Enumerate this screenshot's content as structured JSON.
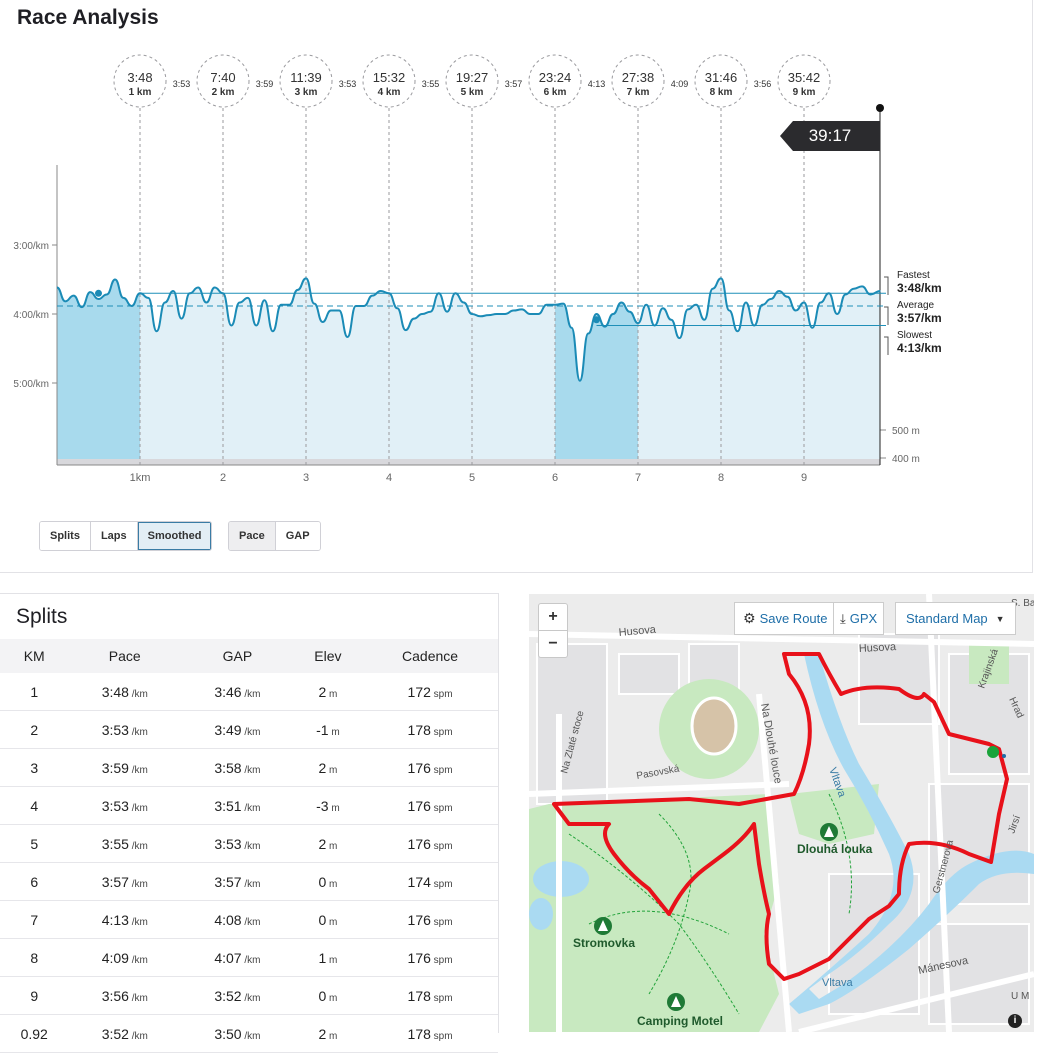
{
  "page_title": "Race Analysis",
  "chart_data": {
    "type": "line",
    "title": "Race Analysis",
    "finish_time": "39:17",
    "km_markers": [
      {
        "time": "3:48",
        "km": "1 km"
      },
      {
        "time": "7:40",
        "km": "2 km"
      },
      {
        "time": "11:39",
        "km": "3 km"
      },
      {
        "time": "15:32",
        "km": "4 km"
      },
      {
        "time": "19:27",
        "km": "5 km"
      },
      {
        "time": "23:24",
        "km": "6 km"
      },
      {
        "time": "27:38",
        "km": "7 km"
      },
      {
        "time": "31:46",
        "km": "8 km"
      },
      {
        "time": "35:42",
        "km": "9 km"
      }
    ],
    "split_paces": [
      "3:53",
      "3:59",
      "3:53",
      "3:55",
      "3:57",
      "4:13",
      "4:09",
      "3:56"
    ],
    "x_ticks": [
      "1km",
      "2",
      "3",
      "4",
      "5",
      "6",
      "7",
      "8",
      "9"
    ],
    "y_ticks": [
      "3:00/km",
      "4:00/km",
      "5:00/km"
    ],
    "elev_ticks": [
      "500 m",
      "400 m"
    ],
    "fastest": {
      "label": "Fastest",
      "value": "3:48/km"
    },
    "average": {
      "label": "Average",
      "value": "3:57/km"
    },
    "slowest": {
      "label": "Slowest",
      "value": "4:13/km"
    },
    "highlighted_km": [
      1,
      7
    ],
    "pace_series_sec_per_km": [
      [
        0,
        217
      ],
      [
        0.1,
        229
      ],
      [
        0.2,
        224
      ],
      [
        0.3,
        234
      ],
      [
        0.4,
        221
      ],
      [
        0.5,
        227
      ],
      [
        0.6,
        223
      ],
      [
        0.7,
        210
      ],
      [
        0.8,
        226
      ],
      [
        0.9,
        233
      ],
      [
        1.0,
        222
      ],
      [
        1.1,
        226
      ],
      [
        1.2,
        255
      ],
      [
        1.3,
        230
      ],
      [
        1.4,
        220
      ],
      [
        1.5,
        244
      ],
      [
        1.6,
        222
      ],
      [
        1.7,
        217
      ],
      [
        1.8,
        230
      ],
      [
        1.9,
        217
      ],
      [
        2.0,
        222
      ],
      [
        2.1,
        250
      ],
      [
        2.2,
        230
      ],
      [
        2.3,
        226
      ],
      [
        2.4,
        250
      ],
      [
        2.5,
        228
      ],
      [
        2.6,
        255
      ],
      [
        2.7,
        232
      ],
      [
        2.8,
        232
      ],
      [
        2.9,
        219
      ],
      [
        3.0,
        209
      ],
      [
        3.1,
        231
      ],
      [
        3.2,
        247
      ],
      [
        3.3,
        237
      ],
      [
        3.4,
        237
      ],
      [
        3.5,
        260
      ],
      [
        3.6,
        233
      ],
      [
        3.7,
        233
      ],
      [
        3.8,
        224
      ],
      [
        3.9,
        220
      ],
      [
        4.0,
        222
      ],
      [
        4.1,
        235
      ],
      [
        4.2,
        254
      ],
      [
        4.3,
        244
      ],
      [
        4.4,
        240
      ],
      [
        4.5,
        238
      ],
      [
        4.6,
        222
      ],
      [
        4.7,
        238
      ],
      [
        4.8,
        222
      ],
      [
        4.9,
        230
      ],
      [
        5.0,
        240
      ],
      [
        5.1,
        242
      ],
      [
        5.2,
        241
      ],
      [
        5.3,
        240
      ],
      [
        5.4,
        240
      ],
      [
        5.5,
        237
      ],
      [
        5.6,
        236
      ],
      [
        5.7,
        240
      ],
      [
        5.8,
        240
      ],
      [
        5.9,
        232
      ],
      [
        6.0,
        232
      ],
      [
        6.1,
        231
      ],
      [
        6.2,
        252
      ],
      [
        6.3,
        298
      ],
      [
        6.4,
        257
      ],
      [
        6.5,
        240
      ],
      [
        6.6,
        251
      ],
      [
        6.7,
        240
      ],
      [
        6.8,
        230
      ],
      [
        6.9,
        238
      ],
      [
        7.0,
        248
      ],
      [
        7.1,
        232
      ],
      [
        7.2,
        250
      ],
      [
        7.3,
        235
      ],
      [
        7.4,
        245
      ],
      [
        7.5,
        261
      ],
      [
        7.6,
        236
      ],
      [
        7.7,
        232
      ],
      [
        7.8,
        245
      ],
      [
        7.9,
        218
      ],
      [
        8.0,
        209
      ],
      [
        8.1,
        237
      ],
      [
        8.2,
        255
      ],
      [
        8.3,
        230
      ],
      [
        8.4,
        250
      ],
      [
        8.5,
        232
      ],
      [
        8.6,
        227
      ],
      [
        8.7,
        220
      ],
      [
        8.8,
        225
      ],
      [
        8.9,
        237
      ],
      [
        9.0,
        230
      ],
      [
        9.1,
        252
      ],
      [
        9.2,
        230
      ],
      [
        9.3,
        222
      ],
      [
        9.4,
        240
      ],
      [
        9.5,
        223
      ],
      [
        9.6,
        218
      ],
      [
        9.7,
        216
      ],
      [
        9.8,
        223
      ],
      [
        9.92,
        220
      ]
    ]
  },
  "chart_buttons": {
    "splits": "Splits",
    "laps": "Laps",
    "smoothed": "Smoothed",
    "pace": "Pace",
    "gap": "GAP"
  },
  "splits": {
    "title": "Splits",
    "headers": [
      "KM",
      "Pace",
      "GAP",
      "Elev",
      "Cadence"
    ],
    "pace_unit": "/km",
    "elev_unit": "m",
    "cadence_unit": "spm",
    "rows": [
      [
        "1",
        "3:48",
        "3:46",
        "2",
        "172"
      ],
      [
        "2",
        "3:53",
        "3:49",
        "-1",
        "178"
      ],
      [
        "3",
        "3:59",
        "3:58",
        "2",
        "176"
      ],
      [
        "4",
        "3:53",
        "3:51",
        "-3",
        "176"
      ],
      [
        "5",
        "3:55",
        "3:53",
        "2",
        "176"
      ],
      [
        "6",
        "3:57",
        "3:57",
        "0",
        "174"
      ],
      [
        "7",
        "4:13",
        "4:08",
        "0",
        "176"
      ],
      [
        "8",
        "4:09",
        "4:07",
        "1",
        "176"
      ],
      [
        "9",
        "3:56",
        "3:52",
        "0",
        "178"
      ],
      [
        "0.92",
        "3:52",
        "3:50",
        "2",
        "178"
      ]
    ]
  },
  "map": {
    "save_route": "Save Route",
    "gpx": "GPX",
    "map_style": "Standard Map",
    "zoom_in": "+",
    "zoom_out": "−",
    "info": "i",
    "labels": [
      "Husova",
      "Husova",
      "Na Zlaté stoce",
      "Pasovská",
      "Na Dlouhé louce",
      "Vltava",
      "Dlouhá louka",
      "Stromovka",
      "Camping Motel",
      "Vltava",
      "Mánesova",
      "Gerstnerova",
      "Krajinská",
      "Hrad",
      "Jirsí",
      "S. Ba",
      "U M"
    ],
    "colors": {
      "route": "#e8111a",
      "water": "#aadaf2",
      "park": "#c8e9c0",
      "start": "#1aa33a"
    }
  }
}
